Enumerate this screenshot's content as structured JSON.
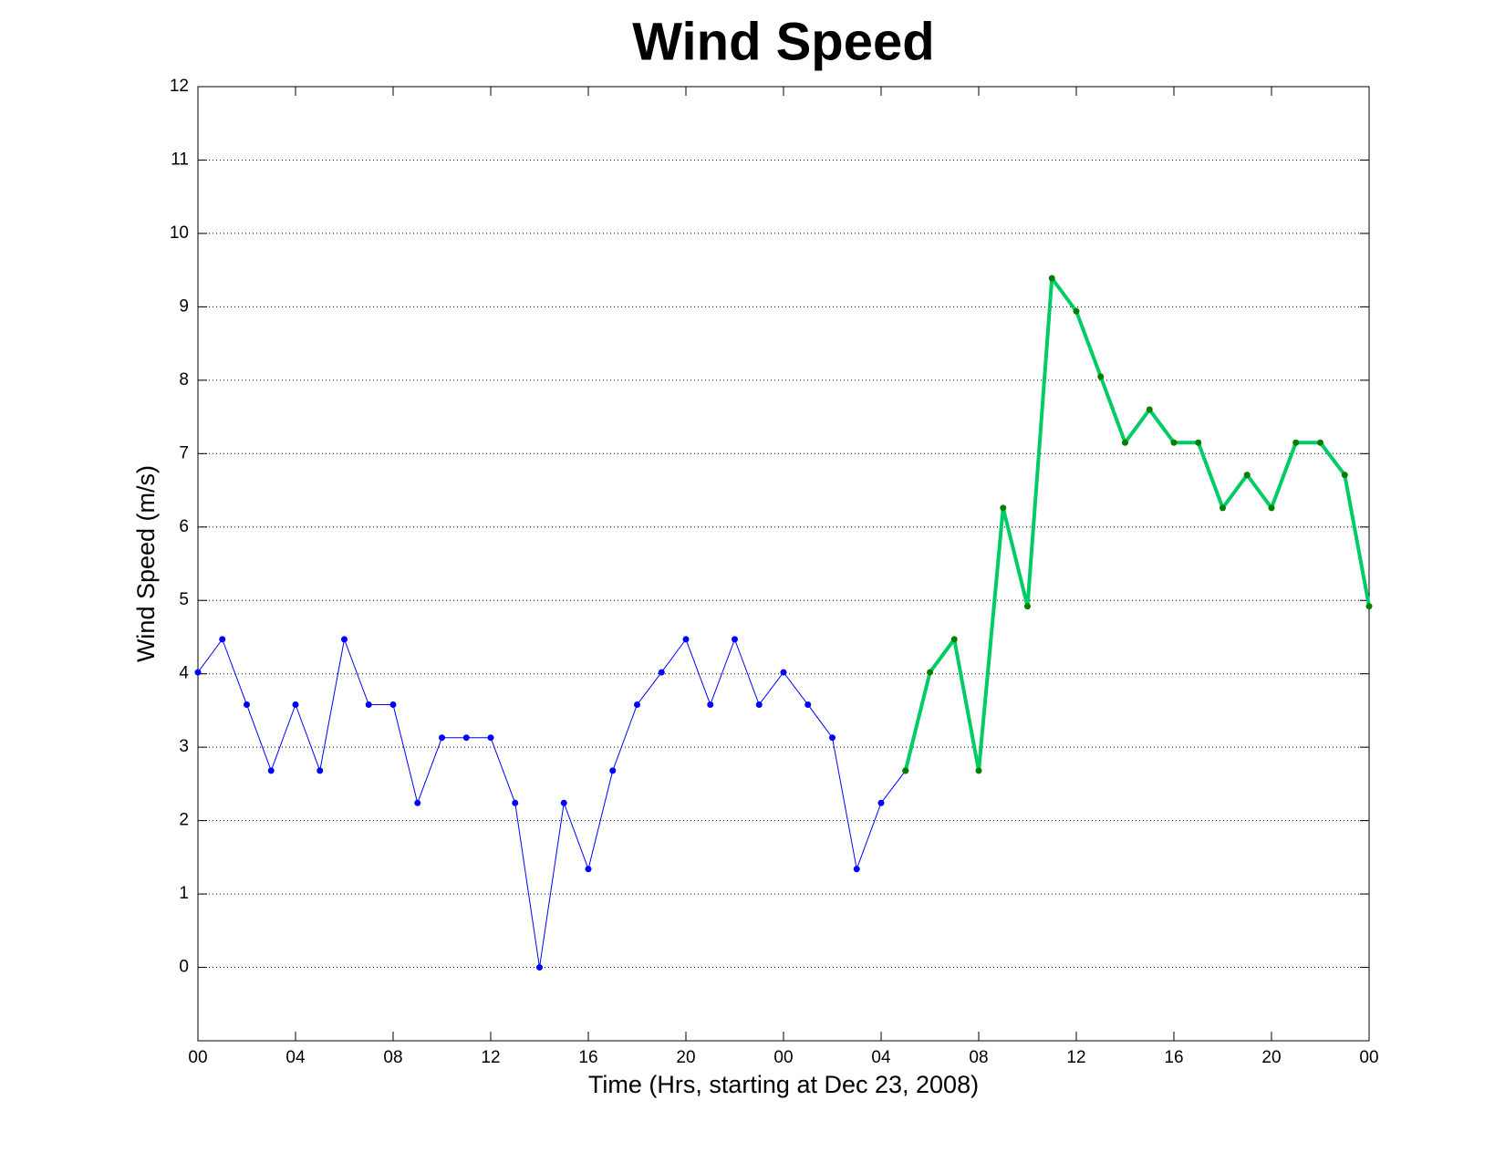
{
  "chart_data": {
    "type": "line",
    "title": "Wind Speed",
    "x_label": "Time (Hrs, starting at Dec 23, 2008)",
    "y_label": "Wind Speed (m/s)",
    "x": [
      0,
      1,
      2,
      3,
      4,
      5,
      6,
      7,
      8,
      9,
      10,
      11,
      12,
      13,
      14,
      15,
      16,
      17,
      18,
      19,
      20,
      21,
      22,
      23,
      24,
      25,
      26,
      27,
      28,
      29,
      30,
      31,
      32,
      33,
      34,
      35,
      36,
      37,
      38,
      39,
      40,
      41,
      42,
      43,
      44,
      45,
      46,
      47,
      48
    ],
    "series": [
      {
        "color": "#0000ff",
        "marker_color": "#0000ff",
        "line_width": 1,
        "values": [
          4.02,
          4.47,
          3.58,
          2.68,
          3.58,
          2.68,
          4.47,
          3.58,
          3.58,
          2.24,
          3.13,
          3.13,
          3.13,
          2.24,
          0,
          2.24,
          1.34,
          2.68,
          3.58,
          4.02,
          4.47,
          3.58,
          4.47,
          3.58,
          4.02,
          3.58,
          3.13,
          1.34,
          2.24,
          2.68,
          null,
          null,
          null,
          null,
          null,
          null,
          null,
          null,
          null,
          null,
          null,
          null,
          null,
          null,
          null,
          null,
          null,
          null,
          null
        ]
      },
      {
        "color": "#00cc66",
        "marker_color": "#007f00",
        "line_width": 4,
        "values": [
          null,
          null,
          null,
          null,
          null,
          null,
          null,
          null,
          null,
          null,
          null,
          null,
          null,
          null,
          null,
          null,
          null,
          null,
          null,
          null,
          null,
          null,
          null,
          null,
          null,
          null,
          null,
          null,
          null,
          2.68,
          4.02,
          4.47,
          2.68,
          6.26,
          4.92,
          9.39,
          8.94,
          8.05,
          7.15,
          7.6,
          7.15,
          7.15,
          6.26,
          6.71,
          6.26,
          7.15,
          7.15,
          6.71,
          4.92
        ]
      }
    ],
    "xlim": [
      0,
      48
    ],
    "xticks": [
      {
        "value": 0,
        "label": "00"
      },
      {
        "value": 4,
        "label": "04"
      },
      {
        "value": 8,
        "label": "08"
      },
      {
        "value": 12,
        "label": "12"
      },
      {
        "value": 16,
        "label": "16"
      },
      {
        "value": 20,
        "label": "20"
      },
      {
        "value": 24,
        "label": "00"
      },
      {
        "value": 28,
        "label": "04"
      },
      {
        "value": 32,
        "label": "08"
      },
      {
        "value": 36,
        "label": "12"
      },
      {
        "value": 40,
        "label": "16"
      },
      {
        "value": 44,
        "label": "20"
      },
      {
        "value": 48,
        "label": "00"
      }
    ],
    "ylim": [
      -1,
      12
    ],
    "yticks": [
      0,
      1,
      2,
      3,
      4,
      5,
      6,
      7,
      8,
      9,
      10,
      11,
      12
    ],
    "grid": true
  }
}
